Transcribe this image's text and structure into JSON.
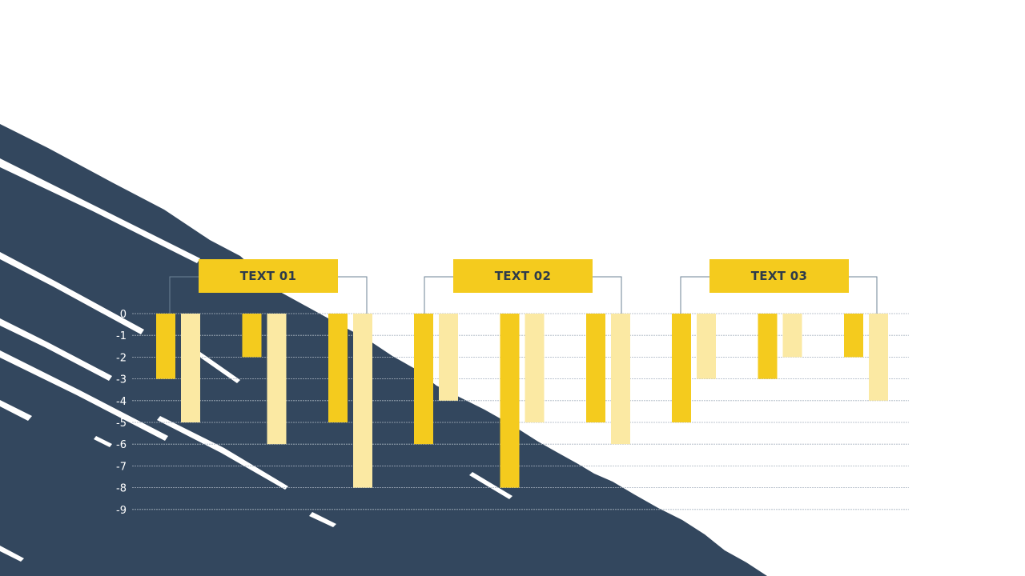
{
  "colors": {
    "background": "#ffffff",
    "brush": "#33475e",
    "primary_bar": "#f4cb1e",
    "secondary_bar": "#fbe9a3",
    "label_box": "#f4cb1e",
    "label_text": "#2e3b4a",
    "axis_text": "#ffffff",
    "grid": "#a9b4c0",
    "bracket": "#6e8396"
  },
  "chart_data": {
    "type": "bar",
    "title": "",
    "xlabel": "",
    "ylabel": "",
    "ylim": [
      -9,
      0
    ],
    "yticks": [
      "0",
      "-1",
      "-2",
      "-3",
      "-4",
      "-5",
      "-6",
      "-7",
      "-8",
      "-9"
    ],
    "grid": true,
    "groups": [
      {
        "label": "TEXT 01",
        "pairs": [
          {
            "primary": -3,
            "secondary": -5
          },
          {
            "primary": -2,
            "secondary": -6
          },
          {
            "primary": -5,
            "secondary": -8
          }
        ]
      },
      {
        "label": "TEXT 02",
        "pairs": [
          {
            "primary": -6,
            "secondary": -4
          },
          {
            "primary": -8,
            "secondary": -5
          },
          {
            "primary": -5,
            "secondary": -6
          }
        ]
      },
      {
        "label": "TEXT 03",
        "pairs": [
          {
            "primary": -5,
            "secondary": -3
          },
          {
            "primary": -3,
            "secondary": -2
          },
          {
            "primary": -2,
            "secondary": -4
          }
        ]
      }
    ]
  }
}
